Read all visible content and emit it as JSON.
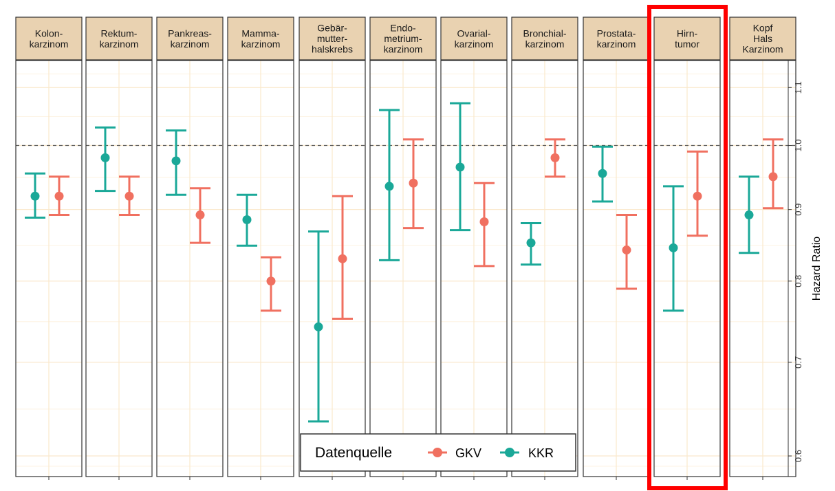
{
  "chart_data": {
    "type": "scatter",
    "subtype": "point-range (hazard ratio with confidence intervals), faceted",
    "y_scale": "log",
    "ylabel": "Hazard Ratio",
    "ylim": [
      0.58,
      1.15
    ],
    "y_ticks": [
      0.6,
      0.7,
      0.8,
      0.9,
      1.0,
      1.1
    ],
    "y_tick_labels": [
      "0.6",
      "0.7",
      "0.8",
      "0.9",
      "1.0",
      "1.1"
    ],
    "reference_line": 1.0,
    "grid": true,
    "legend": {
      "title": "Datenquelle",
      "position": "bottom-center",
      "entries": [
        {
          "name": "GKV",
          "color": "#F07060"
        },
        {
          "name": "KKR",
          "color": "#1AA898"
        }
      ]
    },
    "highlighted_facet": "Hirn-tumor",
    "highlight_color": "#FF0000",
    "facets": [
      {
        "label": [
          "Kolon-",
          "karzinom"
        ],
        "KKR": {
          "hr": 0.92,
          "lo": 0.888,
          "hi": 0.955
        },
        "GKV": {
          "hr": 0.92,
          "lo": 0.892,
          "hi": 0.95
        }
      },
      {
        "label": [
          "Rektum-",
          "karzinom"
        ],
        "KKR": {
          "hr": 0.98,
          "lo": 0.928,
          "hi": 1.03
        },
        "GKV": {
          "hr": 0.92,
          "lo": 0.892,
          "hi": 0.95
        }
      },
      {
        "label": [
          "Pankreas-",
          "karzinom"
        ],
        "KKR": {
          "hr": 0.975,
          "lo": 0.922,
          "hi": 1.025
        },
        "GKV": {
          "hr": 0.892,
          "lo": 0.852,
          "hi": 0.932
        }
      },
      {
        "label": [
          "Mamma-",
          "karzinom"
        ],
        "KKR": {
          "hr": 0.885,
          "lo": 0.848,
          "hi": 0.922
        },
        "GKV": {
          "hr": 0.8,
          "lo": 0.762,
          "hi": 0.832
        }
      },
      {
        "label": [
          "Gebär-",
          "mutter-",
          "halskrebs"
        ],
        "KKR": {
          "hr": 0.742,
          "lo": 0.635,
          "hi": 0.868
        },
        "GKV": {
          "hr": 0.83,
          "lo": 0.752,
          "hi": 0.92
        }
      },
      {
        "label": [
          "Endo-",
          "metrium-",
          "karzinom"
        ],
        "KKR": {
          "hr": 0.935,
          "lo": 0.828,
          "hi": 1.06
        },
        "GKV": {
          "hr": 0.94,
          "lo": 0.873,
          "hi": 1.01
        }
      },
      {
        "label": [
          "Ovarial-",
          "karzinom"
        ],
        "KKR": {
          "hr": 0.965,
          "lo": 0.87,
          "hi": 1.072
        },
        "GKV": {
          "hr": 0.882,
          "lo": 0.82,
          "hi": 0.94
        }
      },
      {
        "label": [
          "Bronchial-",
          "karzinom"
        ],
        "KKR": {
          "hr": 0.852,
          "lo": 0.822,
          "hi": 0.88
        },
        "GKV": {
          "hr": 0.98,
          "lo": 0.95,
          "hi": 1.01
        }
      },
      {
        "label": [
          "Prostata-",
          "karzinom"
        ],
        "KKR": {
          "hr": 0.955,
          "lo": 0.912,
          "hi": 0.998
        },
        "GKV": {
          "hr": 0.842,
          "lo": 0.79,
          "hi": 0.892
        }
      },
      {
        "label": [
          "Hirn-",
          "tumor"
        ],
        "KKR": {
          "hr": 0.845,
          "lo": 0.762,
          "hi": 0.935
        },
        "GKV": {
          "hr": 0.92,
          "lo": 0.862,
          "hi": 0.99
        }
      },
      {
        "label": [
          "Kopf",
          "Hals",
          "Karzinom"
        ],
        "KKR": {
          "hr": 0.892,
          "lo": 0.838,
          "hi": 0.95
        },
        "GKV": {
          "hr": 0.95,
          "lo": 0.902,
          "hi": 1.01
        }
      }
    ]
  }
}
